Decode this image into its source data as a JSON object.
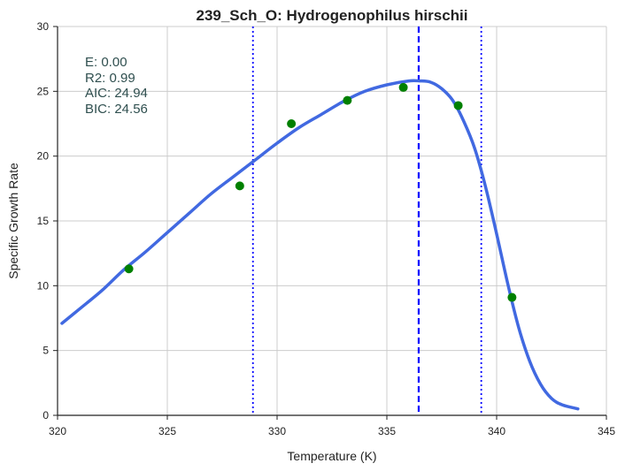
{
  "chart_data": {
    "type": "line",
    "title": "239_Sch_O: Hydrogenophilus hirschii",
    "xlabel": "Temperature (K)",
    "ylabel": "Specific Growth Rate",
    "xlim": [
      320,
      345
    ],
    "ylim": [
      0,
      30
    ],
    "xticks": [
      320,
      325,
      330,
      335,
      340,
      345
    ],
    "yticks": [
      0,
      5,
      10,
      15,
      20,
      25,
      30
    ],
    "grid": true,
    "stats": [
      "E:  0.00",
      "R2:  0.99",
      "AIC: 24.94",
      "BIC: 24.56"
    ],
    "fit_curve": {
      "color": "#4169e1",
      "x": [
        320.2,
        321,
        322,
        323,
        324,
        325,
        326,
        327,
        328,
        329,
        330,
        331,
        332,
        333,
        334,
        335,
        336,
        336.5,
        337,
        337.5,
        338,
        338.5,
        339,
        339.5,
        340,
        340.5,
        341,
        341.5,
        342,
        342.5,
        343,
        343.7
      ],
      "y": [
        7.1,
        8.2,
        9.6,
        11.2,
        12.6,
        14.1,
        15.6,
        17.1,
        18.4,
        19.7,
        21.0,
        22.2,
        23.2,
        24.2,
        25.0,
        25.5,
        25.8,
        25.8,
        25.7,
        25.2,
        24.3,
        22.7,
        20.6,
        17.6,
        14.0,
        10.2,
        6.8,
        4.2,
        2.4,
        1.3,
        0.8,
        0.5
      ]
    },
    "observed": {
      "color": "#008000",
      "x": [
        323.25,
        328.3,
        330.65,
        333.2,
        335.75,
        338.25,
        340.7
      ],
      "y": [
        11.3,
        17.7,
        22.5,
        24.3,
        25.3,
        23.9,
        9.1
      ]
    },
    "vlines": [
      {
        "x": 328.9,
        "style": "dotted",
        "color": "#0000ff"
      },
      {
        "x": 336.45,
        "style": "dashed",
        "color": "#0000ff"
      },
      {
        "x": 339.3,
        "style": "dotted",
        "color": "#0000ff"
      }
    ]
  }
}
